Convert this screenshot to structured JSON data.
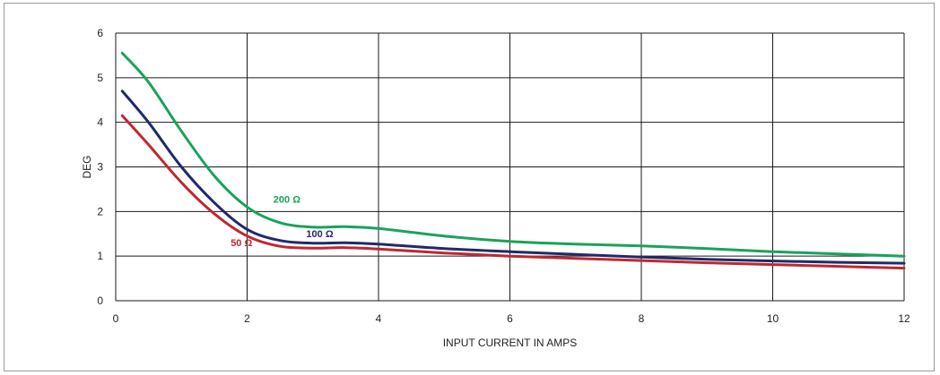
{
  "chart_data": {
    "type": "line",
    "title": "",
    "xlabel": "INPUT CURRENT IN AMPS",
    "ylabel": "DEG",
    "xlim": [
      0,
      12
    ],
    "ylim": [
      0,
      6
    ],
    "x_ticks": [
      0,
      2,
      4,
      6,
      8,
      10,
      12
    ],
    "y_ticks": [
      0,
      1,
      2,
      3,
      4,
      5,
      6
    ],
    "grid": true,
    "legend": "inline labels",
    "series": [
      {
        "name": "200 Ω",
        "color": "#1aa35a",
        "label_at": [
          2.4,
          2.2
        ],
        "x": [
          0.1,
          0.5,
          1.0,
          1.5,
          2.0,
          2.5,
          3.0,
          3.5,
          4.0,
          5.0,
          6.0,
          7.0,
          8.0,
          9.0,
          10.0,
          11.0,
          12.0
        ],
        "y": [
          5.55,
          4.9,
          3.8,
          2.8,
          2.1,
          1.75,
          1.65,
          1.66,
          1.62,
          1.45,
          1.33,
          1.27,
          1.23,
          1.17,
          1.1,
          1.05,
          1.0
        ]
      },
      {
        "name": "100 Ω",
        "color": "#1f2a6b",
        "label_at": [
          2.9,
          1.42
        ],
        "x": [
          0.1,
          0.5,
          1.0,
          1.5,
          2.0,
          2.5,
          3.0,
          3.5,
          4.0,
          5.0,
          6.0,
          7.0,
          8.0,
          9.0,
          10.0,
          11.0,
          12.0
        ],
        "y": [
          4.7,
          4.0,
          3.0,
          2.2,
          1.6,
          1.35,
          1.29,
          1.3,
          1.27,
          1.17,
          1.1,
          1.04,
          0.98,
          0.93,
          0.89,
          0.86,
          0.84
        ]
      },
      {
        "name": "50 Ω",
        "color": "#c0282e",
        "label_at": [
          1.75,
          1.22
        ],
        "x": [
          0.1,
          0.5,
          1.0,
          1.5,
          2.0,
          2.5,
          3.0,
          3.5,
          4.0,
          5.0,
          6.0,
          7.0,
          8.0,
          9.0,
          10.0,
          11.0,
          12.0
        ],
        "y": [
          4.15,
          3.5,
          2.65,
          1.95,
          1.45,
          1.22,
          1.18,
          1.19,
          1.16,
          1.07,
          1.0,
          0.95,
          0.9,
          0.85,
          0.81,
          0.77,
          0.73
        ]
      }
    ]
  }
}
